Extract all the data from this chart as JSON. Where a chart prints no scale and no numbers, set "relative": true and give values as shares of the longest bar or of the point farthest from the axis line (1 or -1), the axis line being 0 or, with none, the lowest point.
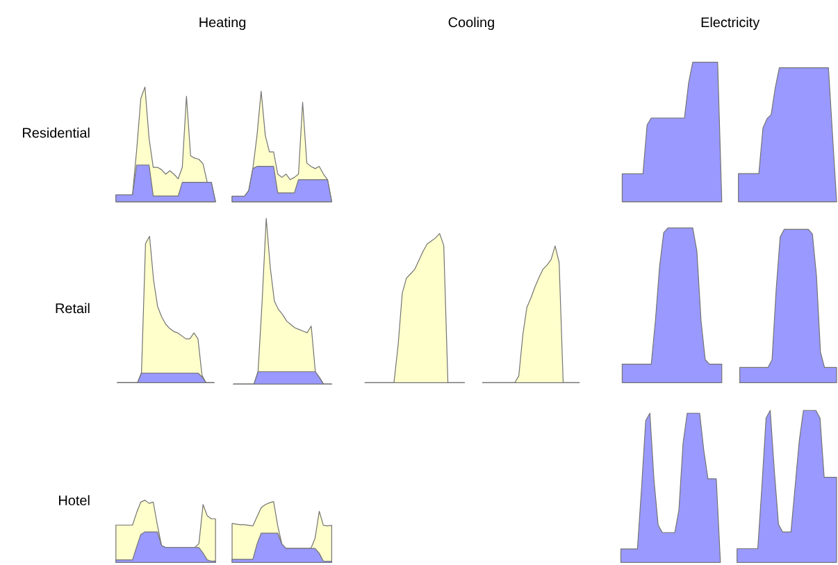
{
  "chart_data": [
    {
      "type": "other",
      "categories": [
        "Heating",
        "Cooling",
        "Electricity"
      ],
      "y_categories": [
        "Residential",
        "Retail",
        "Hotel"
      ]
    },
    {
      "type": "area",
      "relative": true,
      "categories": [
        null,
        null,
        null,
        null,
        null,
        null,
        null,
        null,
        null,
        null,
        null,
        null,
        null,
        null,
        null,
        null,
        null,
        null,
        null,
        null,
        null,
        null,
        null,
        null,
        null
      ],
      "series": [
        {
          "color": "#ffffcc",
          "values": [
            0.06,
            0.06,
            0.06,
            0.06,
            0.06,
            0.45,
            0.9,
            1,
            0.55,
            0.3,
            0.3,
            0.28,
            0.24,
            0.27,
            0.24,
            0.2,
            0.3,
            0.92,
            0.4,
            0.38,
            0.37,
            0.33,
            0.17,
            0.17,
            0
          ]
        },
        {
          "color": "#9999ff",
          "values": [
            0.06,
            0.06,
            0.06,
            0.06,
            0.06,
            0.32,
            0.32,
            0.32,
            0.32,
            0.05,
            0.05,
            0.05,
            0.05,
            0.05,
            0.05,
            0.05,
            0.17,
            0.17,
            0.17,
            0.17,
            0.17,
            0.17,
            0.17,
            0.17,
            0
          ]
        }
      ]
    },
    {
      "type": "area",
      "relative": true,
      "categories": [
        null,
        null,
        null,
        null,
        null,
        null,
        null,
        null,
        null,
        null,
        null,
        null,
        null,
        null,
        null,
        null,
        null,
        null,
        null,
        null,
        null,
        null,
        null,
        null,
        null
      ],
      "series": [
        {
          "color": "#ffffcc",
          "values": [
            0.05,
            0.05,
            0.05,
            0.05,
            0.1,
            0.3,
            0.6,
            1,
            0.6,
            0.45,
            0.45,
            0.25,
            0.22,
            0.25,
            0.2,
            0.22,
            0.25,
            0.9,
            0.35,
            0.32,
            0.3,
            0.32,
            0.25,
            0.2,
            0
          ]
        },
        {
          "color": "#9999ff",
          "values": [
            0.05,
            0.05,
            0.05,
            0.05,
            0.1,
            0.3,
            0.32,
            0.32,
            0.32,
            0.32,
            0.32,
            0.08,
            0.08,
            0.08,
            0.08,
            0.08,
            0.2,
            0.2,
            0.2,
            0.2,
            0.2,
            0.2,
            0.2,
            0.2,
            0
          ]
        }
      ]
    },
    {
      "type": "area",
      "relative": true,
      "categories": [
        null,
        null,
        null,
        null,
        null,
        null,
        null,
        null,
        null,
        null,
        null,
        null,
        null,
        null,
        null,
        null,
        null,
        null,
        null,
        null,
        null,
        null,
        null,
        null,
        null
      ],
      "series": [
        {
          "color": "#9999ff",
          "values": [
            0.2,
            0.2,
            0.2,
            0.2,
            0.2,
            0.2,
            0.55,
            0.6,
            0.6,
            0.6,
            0.6,
            0.6,
            0.6,
            0.6,
            0.6,
            0.6,
            0.85,
            1,
            1,
            1,
            1,
            1,
            1,
            1,
            0
          ]
        }
      ]
    },
    {
      "type": "area",
      "relative": true,
      "categories": [
        null,
        null,
        null,
        null,
        null,
        null,
        null,
        null,
        null,
        null,
        null,
        null,
        null,
        null,
        null,
        null,
        null,
        null,
        null,
        null,
        null,
        null,
        null,
        null,
        null
      ],
      "series": [
        {
          "color": "#9999ff",
          "values": [
            0.21,
            0.21,
            0.21,
            0.21,
            0.21,
            0.21,
            0.55,
            0.62,
            0.65,
            0.85,
            1,
            1,
            1,
            1,
            1,
            1,
            1,
            1,
            1,
            1,
            1,
            1,
            1,
            0.5,
            0
          ]
        }
      ]
    },
    {
      "type": "area",
      "relative": true,
      "categories": [
        null,
        null,
        null,
        null,
        null,
        null,
        null,
        null,
        null,
        null,
        null,
        null,
        null,
        null,
        null,
        null,
        null,
        null,
        null,
        null,
        null,
        null,
        null,
        null,
        null
      ],
      "series": [
        {
          "color": "#ffffcc",
          "values": [
            0,
            0,
            0,
            0,
            0,
            0,
            0.07,
            0.95,
            1,
            0.7,
            0.52,
            0.45,
            0.4,
            0.37,
            0.35,
            0.34,
            0.32,
            0.3,
            0.3,
            0.34,
            0.3,
            0.05,
            0,
            0,
            0
          ]
        },
        {
          "color": "#9999ff",
          "values": [
            0,
            0,
            0,
            0,
            0,
            0,
            0.066,
            0.066,
            0.066,
            0.066,
            0.066,
            0.066,
            0.066,
            0.066,
            0.066,
            0.066,
            0.066,
            0.066,
            0.066,
            0.066,
            0.066,
            0.04,
            0,
            0,
            0
          ]
        }
      ]
    },
    {
      "type": "area",
      "relative": true,
      "categories": [
        null,
        null,
        null,
        null,
        null,
        null,
        null,
        null,
        null,
        null,
        null,
        null,
        null,
        null,
        null,
        null,
        null,
        null,
        null,
        null,
        null,
        null,
        null,
        null,
        null
      ],
      "series": [
        {
          "color": "#ffffcc",
          "values": [
            0,
            0,
            0,
            0,
            0,
            0,
            0.075,
            0.5,
            1,
            0.7,
            0.5,
            0.45,
            0.42,
            0.38,
            0.36,
            0.34,
            0.33,
            0.32,
            0.31,
            0.35,
            0.075,
            0.04,
            0,
            0,
            0
          ]
        },
        {
          "color": "#9999ff",
          "values": [
            0,
            0,
            0,
            0,
            0,
            0,
            0.075,
            0.075,
            0.075,
            0.075,
            0.075,
            0.075,
            0.075,
            0.075,
            0.075,
            0.075,
            0.075,
            0.075,
            0.075,
            0.075,
            0.075,
            0.04,
            0,
            0,
            0
          ]
        }
      ]
    },
    {
      "type": "area",
      "relative": true,
      "categories": [
        null,
        null,
        null,
        null,
        null,
        null,
        null,
        null,
        null,
        null,
        null,
        null,
        null,
        null,
        null,
        null,
        null,
        null,
        null,
        null,
        null,
        null,
        null,
        null,
        null
      ],
      "series": [
        {
          "color": "#ffffcc",
          "values": [
            0,
            0,
            0,
            0,
            0,
            0,
            0,
            0,
            0.25,
            0.6,
            0.7,
            0.73,
            0.76,
            0.82,
            0.88,
            0.93,
            0.95,
            0.97,
            1,
            0.92,
            0,
            0,
            0,
            0,
            0
          ]
        }
      ]
    },
    {
      "type": "area",
      "relative": true,
      "categories": [
        null,
        null,
        null,
        null,
        null,
        null,
        null,
        null,
        null,
        null,
        null,
        null,
        null,
        null,
        null,
        null,
        null,
        null,
        null,
        null,
        null,
        null,
        null,
        null,
        null
      ],
      "series": [
        {
          "color": "#ffffcc",
          "values": [
            0,
            0,
            0,
            0,
            0,
            0,
            0,
            0,
            0,
            0.05,
            0.35,
            0.55,
            0.62,
            0.7,
            0.77,
            0.83,
            0.86,
            0.9,
            1,
            0.88,
            0,
            0,
            0,
            0,
            0
          ]
        }
      ]
    },
    {
      "type": "area",
      "relative": true,
      "categories": [
        null,
        null,
        null,
        null,
        null,
        null,
        null,
        null,
        null,
        null,
        null,
        null,
        null,
        null,
        null,
        null,
        null,
        null,
        null,
        null,
        null,
        null,
        null,
        null,
        null
      ],
      "series": [
        {
          "color": "#9999ff",
          "values": [
            0.12,
            0.12,
            0.12,
            0.12,
            0.12,
            0.12,
            0.12,
            0.12,
            0.4,
            0.75,
            0.97,
            1,
            1,
            1,
            1,
            1,
            1,
            1,
            0.85,
            0.4,
            0.15,
            0.12,
            0.12,
            0.12,
            0.12
          ]
        }
      ]
    },
    {
      "type": "area",
      "relative": true,
      "categories": [
        null,
        null,
        null,
        null,
        null,
        null,
        null,
        null,
        null,
        null,
        null,
        null,
        null,
        null,
        null,
        null,
        null,
        null,
        null,
        null,
        null,
        null,
        null,
        null,
        null
      ],
      "series": [
        {
          "color": "#9999ff",
          "values": [
            0.1,
            0.1,
            0.1,
            0.1,
            0.1,
            0.1,
            0.1,
            0.1,
            0.15,
            0.6,
            0.95,
            1,
            1,
            1,
            1,
            1,
            1,
            1,
            0.97,
            0.7,
            0.2,
            0.1,
            0.1,
            0.1,
            0.1
          ]
        }
      ]
    },
    {
      "type": "area",
      "relative": true,
      "categories": [
        null,
        null,
        null,
        null,
        null,
        null,
        null,
        null,
        null,
        null,
        null,
        null,
        null,
        null,
        null,
        null,
        null,
        null,
        null,
        null,
        null,
        null,
        null,
        null,
        null
      ],
      "series": [
        {
          "color": "#ffffcc",
          "values": [
            0.6,
            0.6,
            0.6,
            0.6,
            0.6,
            0.8,
            0.97,
            1,
            0.95,
            0.97,
            0.6,
            0.27,
            0.24,
            0.24,
            0.24,
            0.24,
            0.24,
            0.24,
            0.24,
            0.24,
            0.3,
            0.93,
            0.75,
            0.7,
            0.7
          ]
        },
        {
          "color": "#9999ff",
          "values": [
            0.04,
            0.04,
            0.04,
            0.04,
            0.04,
            0.25,
            0.45,
            0.49,
            0.49,
            0.49,
            0.49,
            0.27,
            0.24,
            0.24,
            0.24,
            0.24,
            0.24,
            0.24,
            0.24,
            0.24,
            0.24,
            0.15,
            0.04,
            0.02,
            0.02
          ]
        }
      ]
    },
    {
      "type": "area",
      "relative": true,
      "categories": [
        null,
        null,
        null,
        null,
        null,
        null,
        null,
        null,
        null,
        null,
        null,
        null,
        null,
        null,
        null,
        null,
        null,
        null,
        null,
        null,
        null,
        null,
        null,
        null,
        null
      ],
      "series": [
        {
          "color": "#ffffcc",
          "values": [
            0.64,
            0.63,
            0.62,
            0.62,
            0.61,
            0.6,
            0.75,
            0.9,
            0.95,
            0.98,
            1,
            0.6,
            0.3,
            0.23,
            0.23,
            0.23,
            0.23,
            0.23,
            0.23,
            0.23,
            0.4,
            0.84,
            0.61,
            0.6,
            0.61
          ]
        },
        {
          "color": "#9999ff",
          "values": [
            0.05,
            0.05,
            0.05,
            0.05,
            0.05,
            0.05,
            0.3,
            0.48,
            0.48,
            0.48,
            0.48,
            0.48,
            0.3,
            0.23,
            0.23,
            0.23,
            0.23,
            0.23,
            0.23,
            0.23,
            0.23,
            0.15,
            0.02,
            0.02,
            0.02
          ]
        }
      ]
    },
    {
      "type": "area",
      "relative": true,
      "categories": [
        null,
        null,
        null,
        null,
        null,
        null,
        null,
        null,
        null,
        null,
        null,
        null,
        null,
        null,
        null,
        null,
        null,
        null,
        null,
        null,
        null,
        null,
        null,
        null,
        null
      ],
      "series": [
        {
          "color": "#9999ff",
          "values": [
            0.09,
            0.09,
            0.09,
            0.09,
            0.09,
            0.5,
            0.95,
            1,
            0.55,
            0.25,
            0.2,
            0.2,
            0.2,
            0.2,
            0.35,
            0.8,
            1,
            1,
            1,
            1,
            0.75,
            0.56,
            0.56,
            0.56,
            0
          ]
        }
      ]
    },
    {
      "type": "area",
      "relative": true,
      "categories": [
        null,
        null,
        null,
        null,
        null,
        null,
        null,
        null,
        null,
        null,
        null,
        null,
        null,
        null,
        null,
        null,
        null,
        null,
        null,
        null,
        null,
        null,
        null,
        null,
        null
      ],
      "series": [
        {
          "color": "#9999ff",
          "values": [
            0.09,
            0.09,
            0.09,
            0.09,
            0.09,
            0.09,
            0.5,
            0.95,
            1,
            0.6,
            0.25,
            0.2,
            0.2,
            0.2,
            0.5,
            0.8,
            1,
            1,
            1,
            1,
            0.95,
            0.56,
            0.56,
            0.56,
            0.56
          ]
        }
      ]
    }
  ]
}
